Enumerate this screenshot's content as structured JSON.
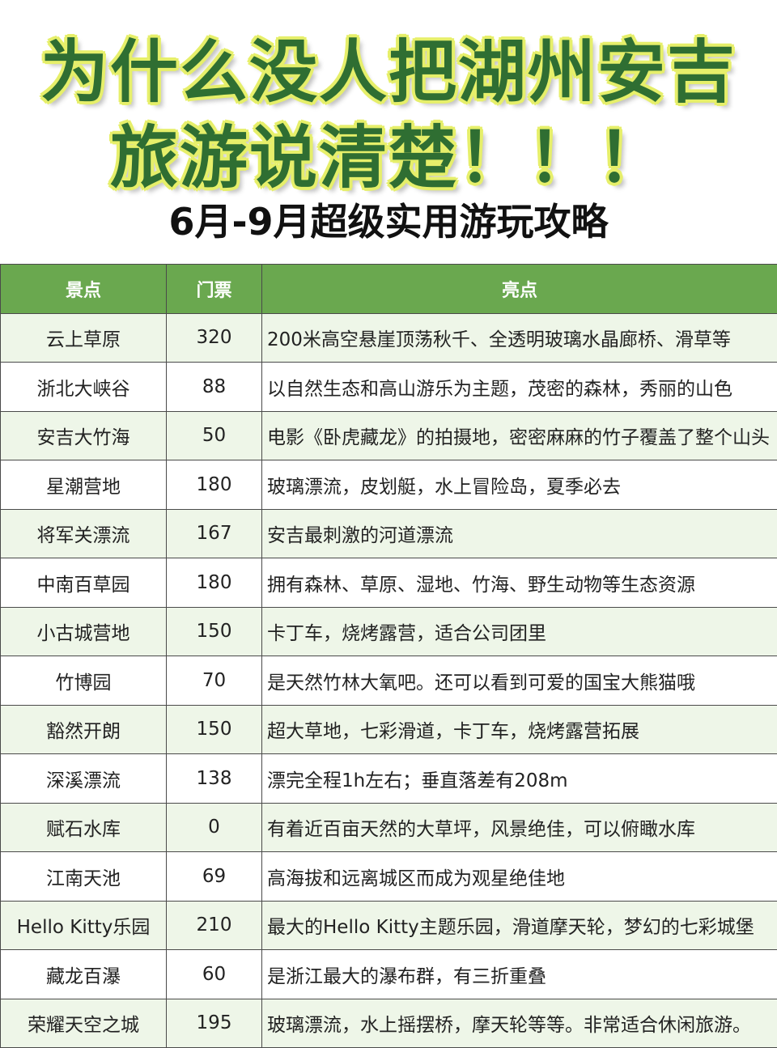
{
  "header": {
    "title_line1": "为什么没人把湖州安吉",
    "title_line2": "旅游说清楚！！！",
    "subtitle": "6月-9月超级实用游玩攻略"
  },
  "table": {
    "columns": [
      "景点",
      "门票",
      "亮点"
    ],
    "rows": [
      [
        "云上草原",
        320,
        "200米高空悬崖顶荡秋千、全透明玻璃水晶廊桥、滑草等"
      ],
      [
        "浙北大峡谷",
        88,
        "以自然生态和高山游乐为主题，茂密的森林，秀丽的山色"
      ],
      [
        "安吉大竹海",
        50,
        "电影《卧虎藏龙》的拍摄地，密密麻麻的竹子覆盖了整个山头"
      ],
      [
        "星潮营地",
        180,
        "玻璃漂流，皮划艇，水上冒险岛，夏季必去"
      ],
      [
        "将军关漂流",
        167,
        "安吉最刺激的河道漂流"
      ],
      [
        "中南百草园",
        180,
        "拥有森林、草原、湿地、竹海、野生动物等生态资源"
      ],
      [
        "小古城营地",
        150,
        "卡丁车，烧烤露营，适合公司团里"
      ],
      [
        "竹博园",
        70,
        "是天然竹林大氧吧。还可以看到可爱的国宝大熊猫哦"
      ],
      [
        "豁然开朗",
        150,
        "超大草地，七彩滑道，卡丁车，烧烤露营拓展"
      ],
      [
        "深溪漂流",
        138,
        "漂完全程1h左右；垂直落差有208m"
      ],
      [
        "赋石水库",
        0,
        "有着近百亩天然的大草坪，风景绝佳，可以俯瞰水库"
      ],
      [
        "江南天池",
        69,
        "高海拔和远离城区而成为观星绝佳地"
      ],
      [
        "Hello Kitty乐园",
        210,
        "最大的Hello Kitty主题乐园，滑道摩天轮，梦幻的七彩城堡"
      ],
      [
        "藏龙百瀑",
        60,
        "是浙江最大的瀑布群，有三折重叠"
      ],
      [
        "荣耀天空之城",
        195,
        "玻璃漂流，水上摇摆桥，摩天轮等等。非常适合休闲旅游。"
      ]
    ]
  }
}
